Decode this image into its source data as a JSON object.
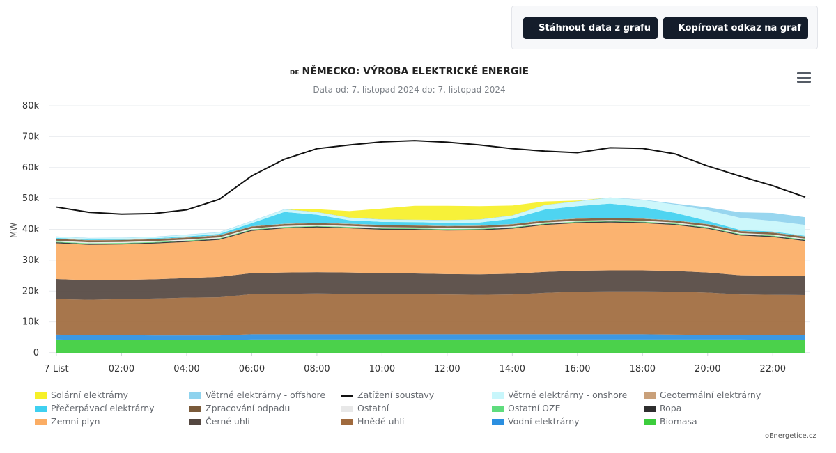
{
  "toolbar": {
    "download_label": "Stáhnout data z grafu",
    "copy_link_label": "Kopírovat odkaz na graf"
  },
  "chart_title": {
    "flag": "DE",
    "text": "NĚMECKO: VÝROBA ELEKTRICKÉ ENERGIE"
  },
  "chart_subtitle": "Data od: 7. listopad 2024 do: 7. listopad 2024",
  "credit": "oEnergetice.cz",
  "chart_data": {
    "type": "area",
    "stacked": true,
    "title": "NĚMECKO: VÝROBA ELEKTRICKÉ ENERGIE",
    "subtitle": "Data od: 7. listopad 2024 do: 7. listopad 2024",
    "xlabel": "",
    "ylabel": "MW",
    "x": [
      0,
      1,
      2,
      3,
      4,
      5,
      6,
      7,
      8,
      9,
      10,
      11,
      12,
      13,
      14,
      15,
      16,
      17,
      18,
      19,
      20,
      21,
      22,
      23
    ],
    "x_tick_labels": [
      {
        "x": 0,
        "label": "7 List"
      },
      {
        "x": 2,
        "label": "02:00"
      },
      {
        "x": 4,
        "label": "04:00"
      },
      {
        "x": 6,
        "label": "06:00"
      },
      {
        "x": 8,
        "label": "08:00"
      },
      {
        "x": 10,
        "label": "10:00"
      },
      {
        "x": 12,
        "label": "12:00"
      },
      {
        "x": 14,
        "label": "14:00"
      },
      {
        "x": 16,
        "label": "16:00"
      },
      {
        "x": 18,
        "label": "18:00"
      },
      {
        "x": 20,
        "label": "20:00"
      },
      {
        "x": 22,
        "label": "22:00"
      }
    ],
    "y_ticks": [
      0,
      10000,
      20000,
      30000,
      40000,
      50000,
      60000,
      70000,
      80000
    ],
    "y_tick_labels": [
      "0",
      "10k",
      "20k",
      "30k",
      "40k",
      "50k",
      "60k",
      "70k",
      "80k"
    ],
    "ylim": [
      0,
      80000
    ],
    "grid": true,
    "legend_position": "bottom",
    "series": [
      {
        "name": "Biomasa",
        "color": "#3ccd3c",
        "values": [
          4300,
          4200,
          4200,
          4100,
          4100,
          4100,
          4300,
          4300,
          4300,
          4300,
          4300,
          4300,
          4300,
          4300,
          4300,
          4300,
          4300,
          4300,
          4300,
          4300,
          4300,
          4300,
          4200,
          4200
        ]
      },
      {
        "name": "Vodní elektrárny",
        "color": "#2b8fe0",
        "values": [
          1600,
          1500,
          1500,
          1500,
          1500,
          1500,
          1700,
          1700,
          1700,
          1700,
          1700,
          1700,
          1700,
          1700,
          1700,
          1700,
          1700,
          1700,
          1700,
          1600,
          1500,
          1500,
          1500,
          1500
        ]
      },
      {
        "name": "Hnědé uhlí",
        "color": "#a06a3d",
        "values": [
          11500,
          11500,
          11700,
          12000,
          12300,
          12400,
          13000,
          13100,
          13200,
          13100,
          13000,
          13000,
          12900,
          12800,
          12900,
          13400,
          13800,
          13900,
          13900,
          13900,
          13700,
          13100,
          13100,
          13000
        ]
      },
      {
        "name": "Černé uhlí",
        "color": "#544740",
        "values": [
          6500,
          6300,
          6200,
          6200,
          6300,
          6600,
          6800,
          6900,
          6900,
          6900,
          6800,
          6700,
          6600,
          6600,
          6700,
          6800,
          6800,
          6800,
          6800,
          6700,
          6500,
          6200,
          6200,
          6100
        ]
      },
      {
        "name": "Zemní plyn",
        "color": "#fbad64",
        "values": [
          11600,
          11500,
          11500,
          11600,
          11700,
          12000,
          13700,
          14300,
          14500,
          14300,
          14100,
          14100,
          14100,
          14300,
          14600,
          15200,
          15400,
          15500,
          15300,
          14900,
          14200,
          12900,
          12500,
          11400
        ]
      },
      {
        "name": "Ropa",
        "color": "#2e2e2e",
        "values": [
          300,
          300,
          300,
          300,
          300,
          300,
          300,
          300,
          300,
          300,
          300,
          300,
          300,
          300,
          300,
          300,
          300,
          300,
          300,
          300,
          300,
          300,
          300,
          300
        ]
      },
      {
        "name": "Ostatní OZE",
        "color": "#5fdc7d",
        "values": [
          200,
          200,
          200,
          200,
          200,
          200,
          200,
          200,
          200,
          200,
          200,
          200,
          200,
          200,
          200,
          200,
          200,
          200,
          200,
          200,
          200,
          200,
          200,
          200
        ]
      },
      {
        "name": "Ostatní",
        "color": "#e8e8e8",
        "values": [
          300,
          300,
          300,
          300,
          300,
          300,
          300,
          300,
          300,
          300,
          300,
          300,
          300,
          300,
          300,
          300,
          300,
          300,
          300,
          300,
          300,
          300,
          300,
          300
        ]
      },
      {
        "name": "Zpracování odpadu",
        "color": "#7a5a3a",
        "values": [
          600,
          600,
          600,
          600,
          600,
          600,
          600,
          600,
          600,
          600,
          600,
          600,
          600,
          600,
          600,
          600,
          600,
          600,
          600,
          600,
          600,
          600,
          600,
          600
        ]
      },
      {
        "name": "Geotermální elektrárny",
        "color": "#c9a07a",
        "values": [
          100,
          100,
          100,
          100,
          100,
          100,
          100,
          100,
          100,
          100,
          100,
          100,
          100,
          100,
          100,
          100,
          100,
          100,
          100,
          100,
          100,
          100,
          100,
          100
        ]
      },
      {
        "name": "Přečerpávací elektrárny",
        "color": "#3fd0f0",
        "values": [
          200,
          200,
          200,
          200,
          300,
          400,
          1000,
          3800,
          2600,
          1100,
          1000,
          1000,
          1000,
          1000,
          1700,
          3500,
          4000,
          4600,
          3700,
          2400,
          1000,
          300,
          300,
          200
        ]
      },
      {
        "name": "Větrné elektrárny - onshore",
        "color": "#c8f6fb",
        "values": [
          400,
          400,
          400,
          400,
          500,
          500,
          600,
          800,
          800,
          800,
          700,
          700,
          800,
          900,
          1000,
          1400,
          1500,
          1900,
          2300,
          2700,
          3500,
          3900,
          3400,
          3500
        ]
      },
      {
        "name": "Větrné elektrárny - offshore",
        "color": "#8fd3ee",
        "values": [
          100,
          100,
          100,
          100,
          100,
          100,
          100,
          100,
          100,
          100,
          100,
          100,
          100,
          100,
          100,
          100,
          100,
          100,
          100,
          300,
          900,
          1800,
          2600,
          2500
        ]
      },
      {
        "name": "Solární elektrárny",
        "color": "#f6f028",
        "values": [
          0,
          0,
          0,
          0,
          0,
          0,
          0,
          0,
          900,
          2100,
          3500,
          4500,
          4600,
          4300,
          3200,
          1100,
          200,
          0,
          0,
          0,
          0,
          0,
          0,
          0
        ]
      }
    ],
    "load": {
      "name": "Zatížení soustavy",
      "color": "#111111",
      "values": [
        47200,
        45500,
        44900,
        45100,
        46300,
        49700,
        57300,
        62700,
        66100,
        67300,
        68300,
        68700,
        68200,
        67300,
        66100,
        65300,
        64800,
        66400,
        66200,
        64400,
        60500,
        57200,
        54100,
        50400
      ]
    }
  },
  "legend": [
    {
      "label": "Solární elektrárny",
      "color": "#f6f028",
      "kind": "area"
    },
    {
      "label": "Větrné elektrárny - offshore",
      "color": "#8fd3ee",
      "kind": "area"
    },
    {
      "label": "Zatížení soustavy",
      "color": "#111111",
      "kind": "line"
    },
    {
      "label": "Větrné elektrárny - onshore",
      "color": "#c8f6fb",
      "kind": "area"
    },
    {
      "label": "Geotermální elektrárny",
      "color": "#c9a07a",
      "kind": "area"
    },
    {
      "label": "Přečerpávací elektrárny",
      "color": "#3fd0f0",
      "kind": "area"
    },
    {
      "label": "Zpracování odpadu",
      "color": "#7a5a3a",
      "kind": "area"
    },
    {
      "label": "Ostatní",
      "color": "#e8e8e8",
      "kind": "area"
    },
    {
      "label": "Ostatní OZE",
      "color": "#5fdc7d",
      "kind": "area"
    },
    {
      "label": "Ropa",
      "color": "#2e2e2e",
      "kind": "area"
    },
    {
      "label": "Zemní plyn",
      "color": "#fbad64",
      "kind": "area"
    },
    {
      "label": "Černé uhlí",
      "color": "#544740",
      "kind": "area"
    },
    {
      "label": "Hnědé uhlí",
      "color": "#a06a3d",
      "kind": "area"
    },
    {
      "label": "Vodní elektrárny",
      "color": "#2b8fe0",
      "kind": "area"
    },
    {
      "label": "Biomasa",
      "color": "#3ccd3c",
      "kind": "area"
    }
  ]
}
